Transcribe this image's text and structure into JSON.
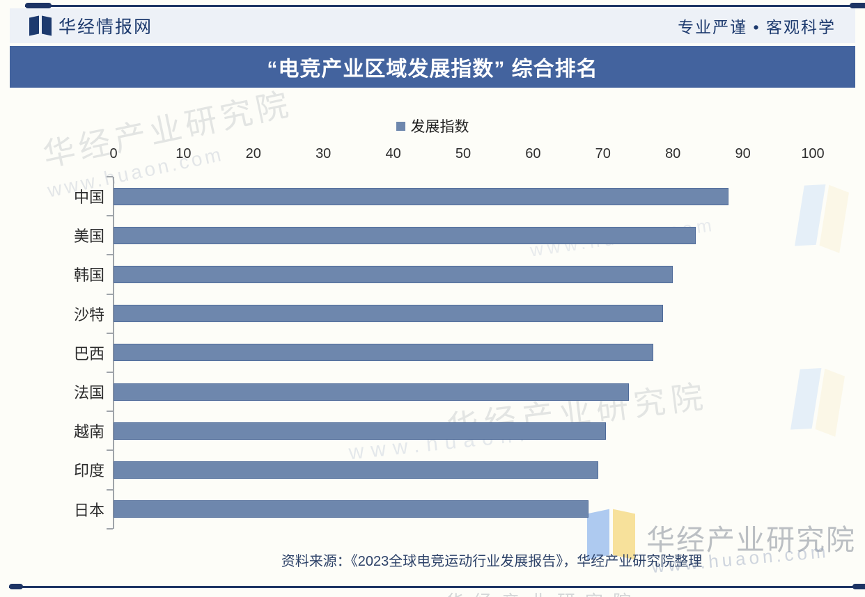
{
  "brand": {
    "name": "华经情报网",
    "tagline": "专业严谨 • 客观科学"
  },
  "title": "“电竞产业区域发展指数” 综合排名",
  "chart_data": {
    "type": "bar",
    "orientation": "horizontal",
    "title": "“电竞产业区域发展指数” 综合排名",
    "series_name": "发展指数",
    "legend_position": "top",
    "categories": [
      "中国",
      "美国",
      "韩国",
      "沙特",
      "巴西",
      "法国",
      "越南",
      "印度",
      "日本"
    ],
    "values": [
      87.9,
      83.3,
      80.0,
      78.6,
      77.2,
      73.7,
      70.4,
      69.3,
      67.9
    ],
    "xlabel": "",
    "ylabel": "",
    "xlim": [
      0,
      100
    ],
    "x_ticks": [
      0,
      10,
      20,
      30,
      40,
      50,
      60,
      70,
      80,
      90,
      100
    ],
    "grid": false,
    "bar_color": "#6E87AD",
    "bar_border_color": "#4F6B99"
  },
  "source_note": "资料来源：《2023全球电竞运动行业发展报告》，华经产业研究院整理",
  "watermark": {
    "org": "华经产业研究院",
    "url": "www.huaon.com"
  },
  "colors": {
    "title_bar_bg": "#43639E",
    "header_bg": "#EDF1F7",
    "navy": "#1D3A6E",
    "axis_gray": "#9FA4A9",
    "source_text": "#2D4268"
  }
}
